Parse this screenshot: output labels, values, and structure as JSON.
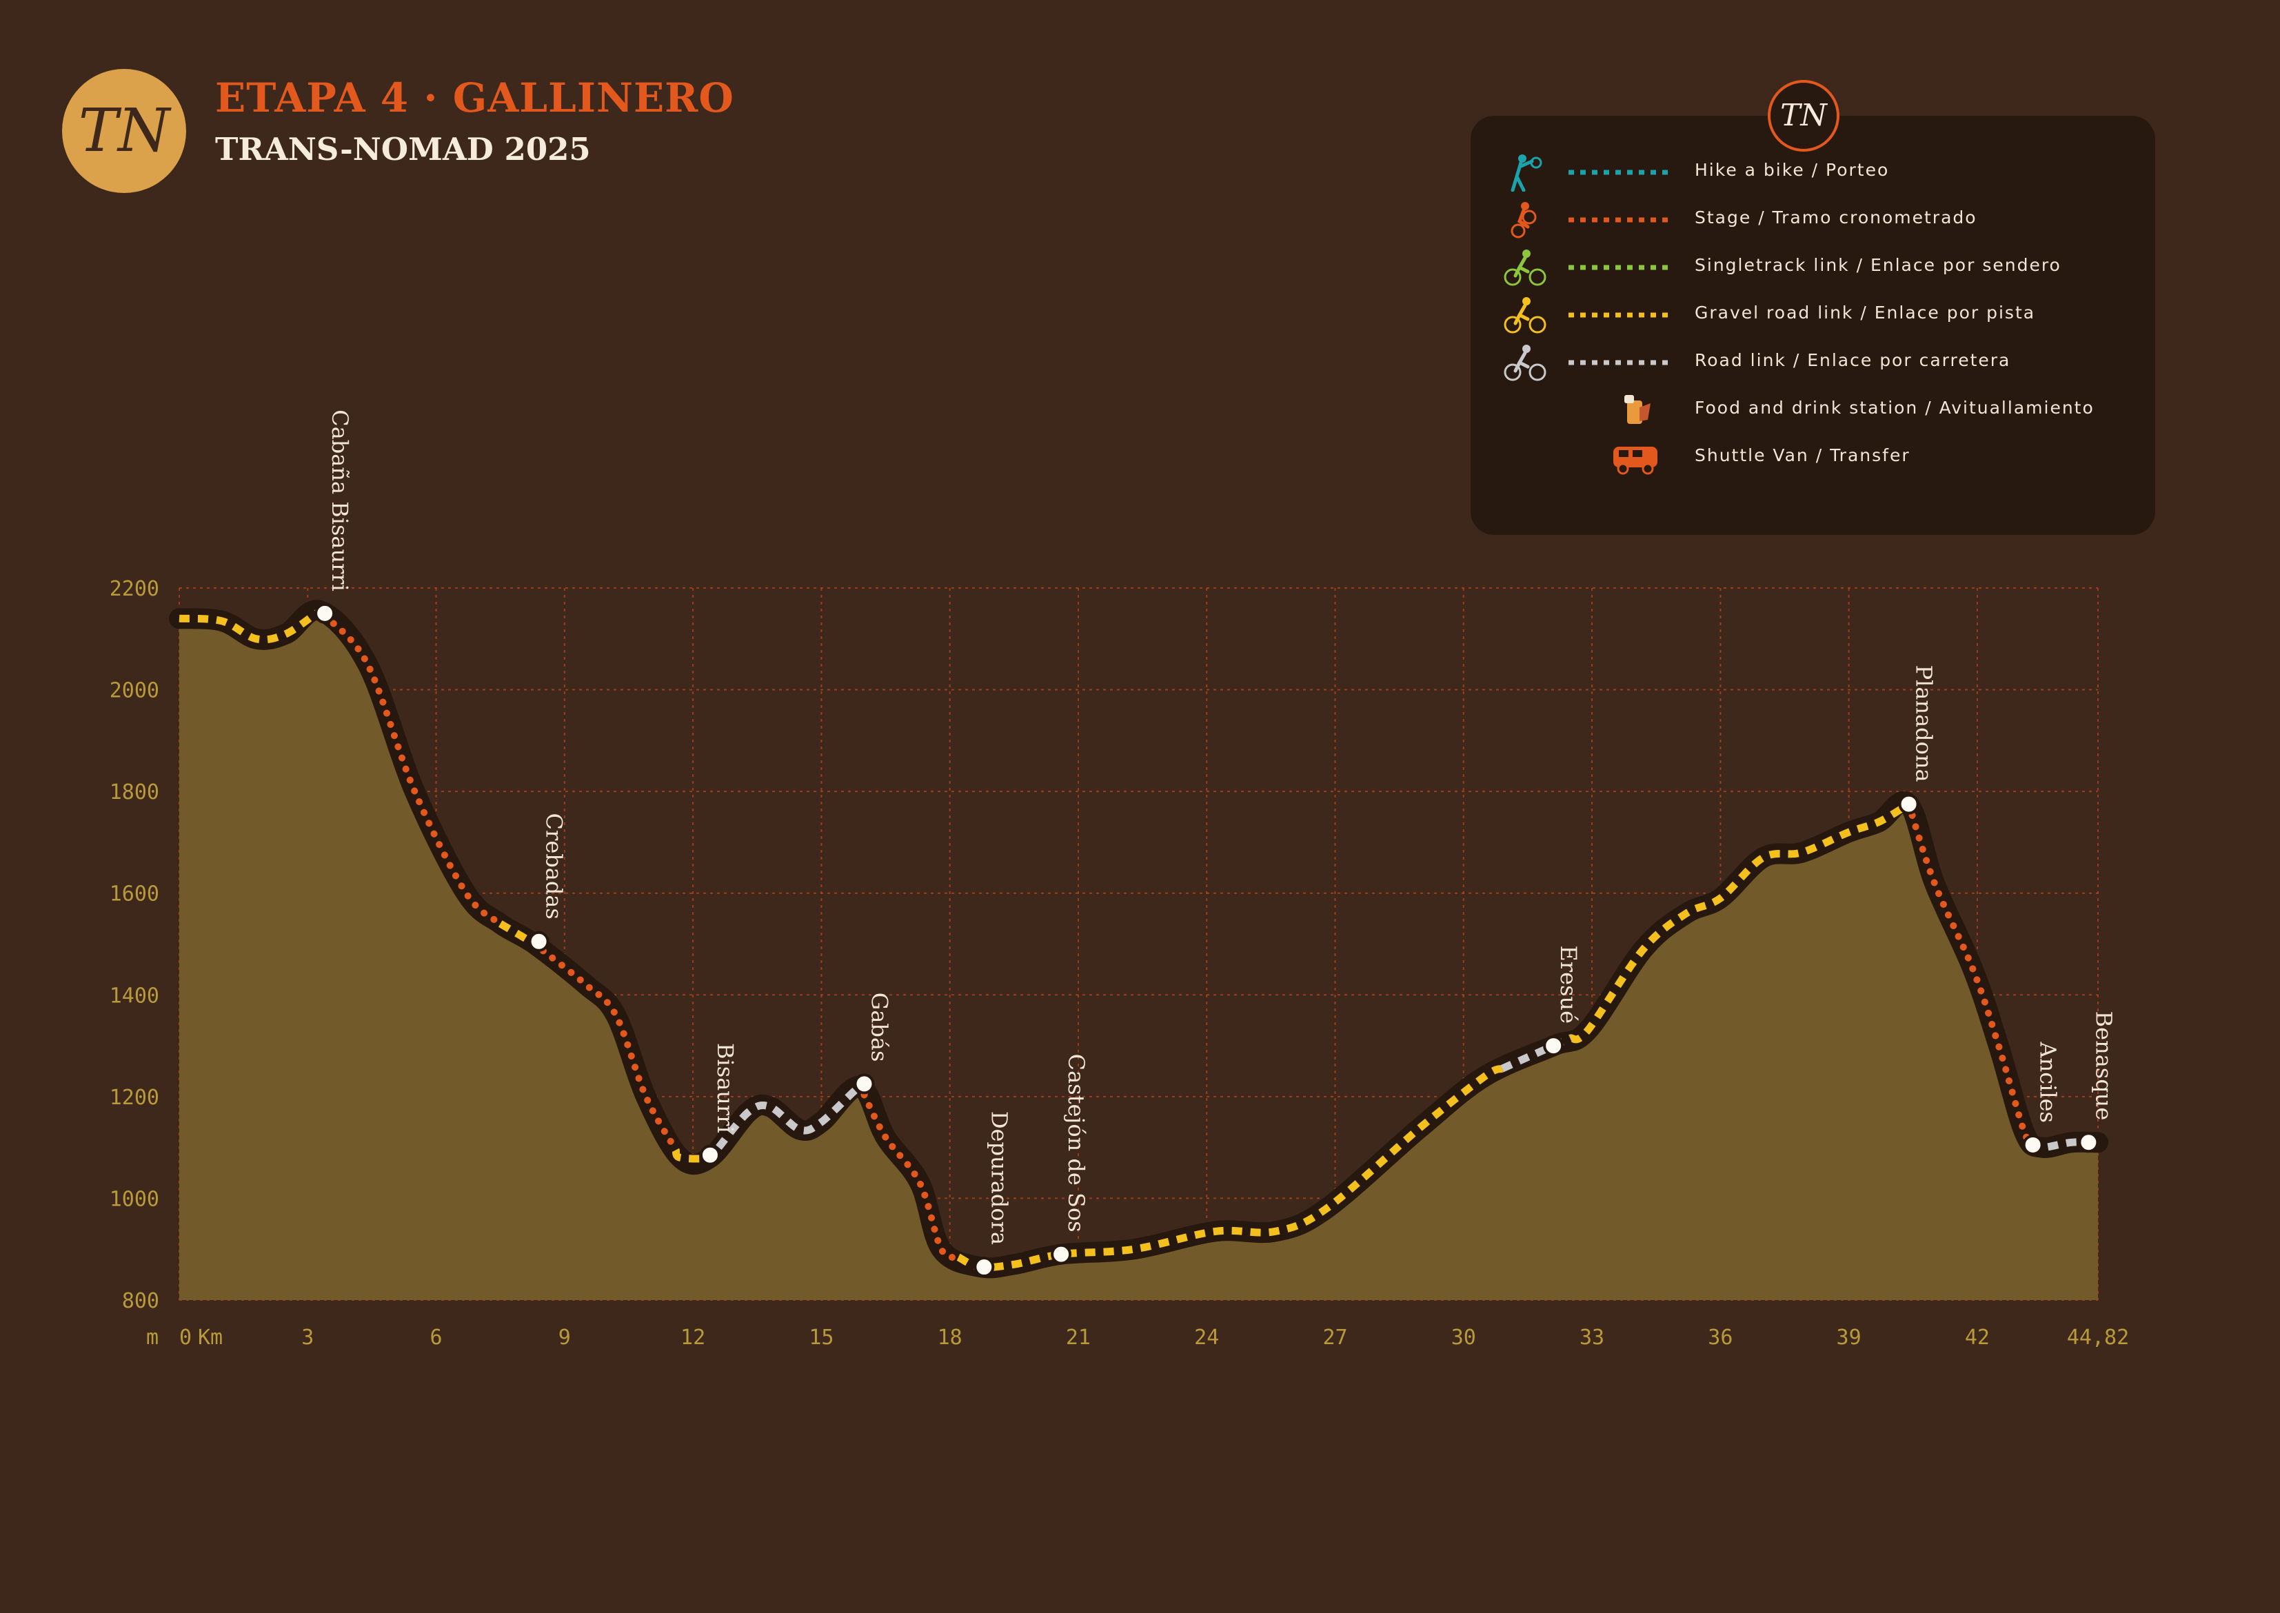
{
  "header": {
    "logo_text": "TN",
    "title": "ETAPA 4 · GALLINERO",
    "subtitle": "TRANS-NOMAD 2025"
  },
  "legend": {
    "badge_text": "TN",
    "items": [
      {
        "label": "Hike a bike / Porteo",
        "color": "#1aa3ad",
        "line": true,
        "icon": "hiker-pushing-bike-icon"
      },
      {
        "label": "Stage / Tramo cronometrado",
        "color": "#e3581d",
        "line": true,
        "icon": "downhill-rider-icon"
      },
      {
        "label": "Singletrack link / Enlace por sendero",
        "color": "#8cc63f",
        "line": true,
        "icon": "cyclist-green-icon"
      },
      {
        "label": "Gravel road link / Enlace por pista",
        "color": "#f4c01e",
        "line": true,
        "icon": "cyclist-yellow-icon"
      },
      {
        "label": "Road link / Enlace por carretera",
        "color": "#c9c9cc",
        "line": true,
        "icon": "cyclist-grey-icon"
      },
      {
        "label": "Food and drink station / Avituallamiento",
        "color": "#e89a3c",
        "line": false,
        "icon": "food-drink-station-icon"
      },
      {
        "label": "Shuttle Van / Transfer",
        "color": "#e3581d",
        "line": false,
        "icon": "shuttle-van-icon"
      }
    ]
  },
  "chart_data": {
    "type": "area",
    "title": "ETAPA 4 · GALLINERO",
    "x_unit_label": "Km",
    "y_unit_label": "m",
    "xlim": [
      0,
      44.82
    ],
    "ylim": [
      800,
      2200
    ],
    "x_ticks": [
      0,
      3,
      6,
      9,
      12,
      15,
      18,
      21,
      24,
      27,
      30,
      33,
      36,
      39,
      42,
      44.82
    ],
    "x_tick_labels": [
      "0",
      "3",
      "6",
      "9",
      "12",
      "15",
      "18",
      "21",
      "24",
      "27",
      "30",
      "33",
      "36",
      "39",
      "42",
      "44,82"
    ],
    "y_ticks": [
      800,
      1000,
      1200,
      1400,
      1600,
      1800,
      2000,
      2200
    ],
    "grid": true,
    "colors": {
      "area": "#735a2b",
      "casing": "#26180f",
      "grid": "#b8431a",
      "ticks": "#b99a3b",
      "marker": "#fdfaf3"
    },
    "profile": [
      [
        0,
        2140
      ],
      [
        1,
        2135
      ],
      [
        1.8,
        2100
      ],
      [
        2.5,
        2110
      ],
      [
        3.3,
        2155
      ],
      [
        4.4,
        2050
      ],
      [
        5.5,
        1800
      ],
      [
        6.7,
        1600
      ],
      [
        7.5,
        1540
      ],
      [
        8.3,
        1500
      ],
      [
        9.5,
        1420
      ],
      [
        10.2,
        1360
      ],
      [
        10.9,
        1200
      ],
      [
        11.7,
        1080
      ],
      [
        12.4,
        1080
      ],
      [
        13.3,
        1170
      ],
      [
        13.8,
        1180
      ],
      [
        14.5,
        1135
      ],
      [
        15.0,
        1150
      ],
      [
        15.9,
        1220
      ],
      [
        16.5,
        1120
      ],
      [
        17.3,
        1030
      ],
      [
        17.8,
        900
      ],
      [
        18.7,
        865
      ],
      [
        19.5,
        870
      ],
      [
        20.6,
        890
      ],
      [
        22.3,
        900
      ],
      [
        24.2,
        935
      ],
      [
        25.6,
        935
      ],
      [
        26.8,
        980
      ],
      [
        29.0,
        1140
      ],
      [
        30.5,
        1240
      ],
      [
        32.1,
        1300
      ],
      [
        32.9,
        1330
      ],
      [
        34.2,
        1490
      ],
      [
        35.2,
        1560
      ],
      [
        36.0,
        1590
      ],
      [
        37.0,
        1670
      ],
      [
        37.9,
        1680
      ],
      [
        39.0,
        1720
      ],
      [
        39.7,
        1740
      ],
      [
        40.4,
        1775
      ],
      [
        41.0,
        1620
      ],
      [
        41.9,
        1450
      ],
      [
        42.5,
        1300
      ],
      [
        43.1,
        1130
      ],
      [
        43.5,
        1100
      ],
      [
        44.2,
        1110
      ],
      [
        44.82,
        1110
      ]
    ],
    "segments": [
      {
        "type": "gravel",
        "color": "#f4c01e",
        "from": 0,
        "to": 3.4
      },
      {
        "type": "stage",
        "color": "#e3581d",
        "from": 3.4,
        "to": 7.5
      },
      {
        "type": "gravel",
        "color": "#f4c01e",
        "from": 7.5,
        "to": 8.5
      },
      {
        "type": "stage",
        "color": "#e3581d",
        "from": 8.5,
        "to": 11.6
      },
      {
        "type": "gravel",
        "color": "#f4c01e",
        "from": 11.6,
        "to": 12.6
      },
      {
        "type": "road",
        "color": "#c9c9cc",
        "from": 12.6,
        "to": 16.0
      },
      {
        "type": "stage",
        "color": "#e3581d",
        "from": 16.0,
        "to": 18.2
      },
      {
        "type": "gravel",
        "color": "#f4c01e",
        "from": 18.2,
        "to": 30.9
      },
      {
        "type": "road",
        "color": "#c9c9cc",
        "from": 30.9,
        "to": 32.5
      },
      {
        "type": "gravel",
        "color": "#f4c01e",
        "from": 32.5,
        "to": 40.4
      },
      {
        "type": "stage",
        "color": "#e3581d",
        "from": 40.4,
        "to": 43.3
      },
      {
        "type": "road",
        "color": "#c9c9cc",
        "from": 43.3,
        "to": 44.82
      }
    ],
    "waypoints": [
      {
        "name": "Cabaña Bisaurri",
        "x": 3.4,
        "y": 2150
      },
      {
        "name": "Crebadas",
        "x": 8.4,
        "y": 1505
      },
      {
        "name": "Bisaurri",
        "x": 12.4,
        "y": 1085
      },
      {
        "name": "Gabás",
        "x": 16.0,
        "y": 1225
      },
      {
        "name": "Depuradora",
        "x": 18.8,
        "y": 865
      },
      {
        "name": "Castejón de Sos",
        "x": 20.6,
        "y": 890
      },
      {
        "name": "Eresué",
        "x": 32.1,
        "y": 1300
      },
      {
        "name": "Planadona",
        "x": 40.4,
        "y": 1775
      },
      {
        "name": "Anciles",
        "x": 43.3,
        "y": 1105
      },
      {
        "name": "Benasque",
        "x": 44.6,
        "y": 1110
      }
    ]
  }
}
